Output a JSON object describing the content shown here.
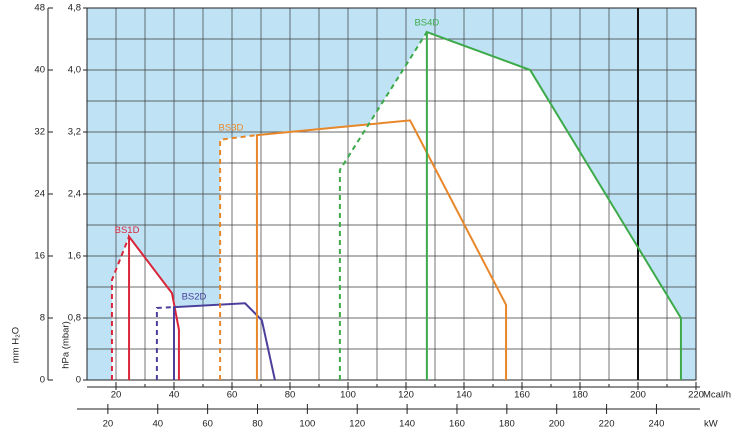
{
  "chart_data": {
    "type": "line",
    "x_label": "Mcal/h",
    "x2_label": "kW",
    "y_label": "mm H₂O",
    "y2_label": "hPa (mbar)",
    "xlim": [
      10,
      220
    ],
    "xticks": [
      20,
      40,
      60,
      80,
      100,
      120,
      140,
      160,
      180,
      200,
      220
    ],
    "xgrid": [
      20,
      30,
      40,
      50,
      60,
      70,
      80,
      90,
      100,
      110,
      120,
      130,
      140,
      150,
      160,
      170,
      180,
      190,
      200,
      210
    ],
    "x2lim": [
      11.63,
      255.86
    ],
    "x2ticks": [
      20,
      40,
      60,
      80,
      100,
      120,
      140,
      160,
      180,
      200,
      220,
      240
    ],
    "ylim": [
      0,
      48
    ],
    "yticks": [
      0,
      8,
      16,
      24,
      32,
      40,
      48
    ],
    "ygrid": [
      4,
      8,
      12,
      16,
      20,
      24,
      28,
      32,
      36,
      40,
      44
    ],
    "y2lim": [
      0,
      4.8
    ],
    "y2ticks": [
      0,
      {
        "value": 0.8,
        "label": "0,8"
      },
      {
        "value": 1.6,
        "label": "1,6"
      },
      {
        "value": 2.4,
        "label": "2,4"
      },
      {
        "value": 3.2,
        "label": "3,2"
      },
      {
        "value": 4.0,
        "label": "4,0"
      },
      {
        "value": 4.8,
        "label": "4,8"
      }
    ],
    "reference_line_x": 200,
    "field_color": "#bfe3f5",
    "series": [
      {
        "name": "BS1D",
        "color": "#d9263a",
        "x": [
          24.5,
          24.5,
          39.3,
          41.7,
          41.7
        ],
        "y": [
          0,
          18.5,
          11.2,
          6.5,
          0
        ],
        "start_x": [
          18.6,
          18.6,
          24.5
        ],
        "start_y": [
          0,
          12.9,
          18.5
        ]
      },
      {
        "name": "BS2D",
        "color": "#4b3f9b",
        "x": [
          40,
          40,
          64.5,
          70.3,
          74.8
        ],
        "y": [
          0,
          9.4,
          9.9,
          7.7,
          0
        ],
        "start_x": [
          34.1,
          34.1,
          40
        ],
        "start_y": [
          0,
          9.3,
          9.4
        ]
      },
      {
        "name": "BS3D",
        "color": "#e8872a",
        "x": [
          68.6,
          68.6,
          121.4,
          154.5,
          154.5
        ],
        "y": [
          0,
          31.6,
          33.5,
          9.7,
          0
        ],
        "start_x": [
          55.9,
          55.9,
          68.6
        ],
        "start_y": [
          0,
          31.0,
          31.6
        ]
      },
      {
        "name": "BS4D",
        "color": "#3daa4a",
        "x": [
          127.2,
          127.2,
          162.8,
          214.8,
          214.8
        ],
        "y": [
          0,
          44.9,
          40,
          8.0,
          0
        ],
        "start_x": [
          97.2,
          97.2,
          127.2
        ],
        "start_y": [
          0,
          27.1,
          44.9
        ]
      }
    ]
  }
}
